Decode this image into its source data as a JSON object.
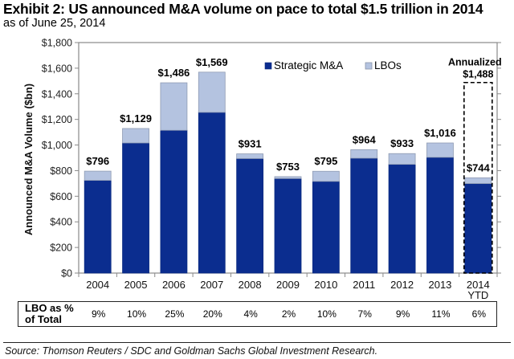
{
  "header": {
    "title": "Exhibit 2: US announced M&A volume on pace to total $1.5 trillion in 2014",
    "subtitle": "as of June 25, 2014"
  },
  "chart_data": {
    "type": "bar",
    "stacked": true,
    "title": "Exhibit 2: US announced M&A volume on pace to total $1.5 trillion in 2014",
    "subtitle": "as of June 25, 2014",
    "xlabel": "",
    "ylabel": "Announced M&A Volume ($bn)",
    "ylim": [
      0,
      1800
    ],
    "yticks": [
      0,
      200,
      400,
      600,
      800,
      1000,
      1200,
      1400,
      1600,
      1800
    ],
    "ytick_labels": [
      "$0",
      "$200",
      "$400",
      "$600",
      "$800",
      "$1,000",
      "$1,200",
      "$1,400",
      "$1,600",
      "$1,800"
    ],
    "categories": [
      "2004",
      "2005",
      "2006",
      "2007",
      "2008",
      "2009",
      "2010",
      "2011",
      "2012",
      "2013",
      "2014 YTD"
    ],
    "category_lines": [
      [
        "2004"
      ],
      [
        "2005"
      ],
      [
        "2006"
      ],
      [
        "2007"
      ],
      [
        "2008"
      ],
      [
        "2009"
      ],
      [
        "2010"
      ],
      [
        "2011"
      ],
      [
        "2012"
      ],
      [
        "2013"
      ],
      [
        "2014",
        "YTD"
      ]
    ],
    "series": [
      {
        "name": "Strategic M&A",
        "color": "#0b2d8f",
        "values": [
          724,
          1016,
          1115,
          1255,
          894,
          738,
          716,
          897,
          849,
          904,
          699
        ]
      },
      {
        "name": "LBOs",
        "color": "#b4c3e0",
        "values": [
          72,
          113,
          371,
          314,
          37,
          15,
          79,
          67,
          84,
          112,
          45
        ]
      }
    ],
    "totals": [
      796,
      1129,
      1486,
      1569,
      931,
      753,
      795,
      964,
      933,
      1016,
      744
    ],
    "total_labels": [
      "$796",
      "$1,129",
      "$1,486",
      "$1,569",
      "$931",
      "$753",
      "$795",
      "$964",
      "$933",
      "$1,016",
      "$744"
    ],
    "legend": {
      "position": "top-right",
      "entries": [
        "Strategic M&A",
        "LBOs"
      ]
    },
    "grid": false,
    "annotation": {
      "category": "2014 YTD",
      "label_lines": [
        "Annualized",
        "$1,488"
      ],
      "value": 1488,
      "style": "dashed-box"
    },
    "lbo_table": {
      "label_lines": [
        "LBO as %",
        "of Total"
      ],
      "values": [
        "9%",
        "10%",
        "25%",
        "20%",
        "4%",
        "2%",
        "10%",
        "7%",
        "9%",
        "11%",
        "6%"
      ]
    }
  },
  "footer": {
    "source": "Source: Thomson Reuters / SDC and Goldman Sachs Global Investment Research."
  }
}
